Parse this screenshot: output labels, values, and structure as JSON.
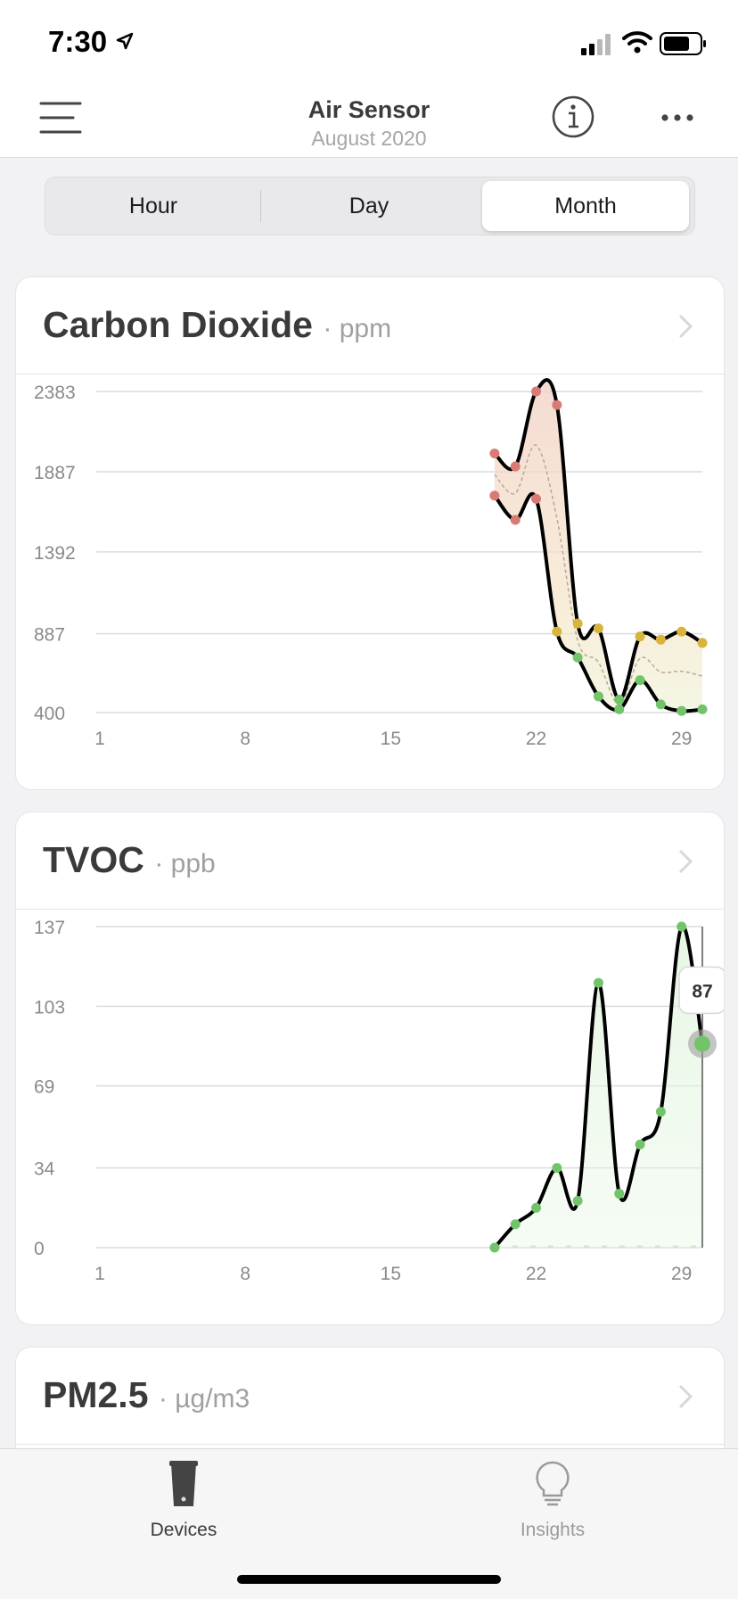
{
  "status": {
    "time": "7:30"
  },
  "header": {
    "title": "Air Sensor",
    "subtitle": "August 2020"
  },
  "segments": [
    "Hour",
    "Day",
    "Month"
  ],
  "selected_segment": "Month",
  "cards": [
    {
      "title": "Carbon Dioxide",
      "unit": "· ppm"
    },
    {
      "title": "TVOC",
      "unit": "· ppb"
    },
    {
      "title": "PM2.5",
      "unit": "· µg/m3"
    }
  ],
  "tabs": [
    {
      "label": "Devices",
      "icon": "air-sensor-device-icon",
      "active": true
    },
    {
      "label": "Insights",
      "icon": "lightbulb-icon",
      "active": false
    }
  ],
  "colors": {
    "red": "#d97b74",
    "yellow": "#d8b43c",
    "green": "#72c46a",
    "line": "#000000"
  },
  "chart_data": [
    {
      "type": "area",
      "title": "Carbon Dioxide",
      "unit": "ppm",
      "x_ticks": [
        "1",
        "8",
        "15",
        "22",
        "29"
      ],
      "y_ticks": [
        "400",
        "887",
        "1392",
        "1887",
        "2383"
      ],
      "xlim": [
        1,
        30
      ],
      "ylim": [
        400,
        2383
      ],
      "series": [
        {
          "x": [
            20,
            21,
            22,
            23,
            24,
            25,
            26,
            27,
            28,
            29,
            30
          ],
          "values": [
            2000,
            1920,
            2383,
            2300,
            950,
            920,
            480,
            870,
            850,
            900,
            830
          ]
        },
        {
          "x": [
            20,
            21,
            22,
            23,
            24,
            25,
            26,
            27,
            28,
            29,
            30
          ],
          "values": [
            1740,
            1590,
            1720,
            900,
            740,
            500,
            420,
            600,
            450,
            410,
            420
          ]
        }
      ]
    },
    {
      "type": "area",
      "title": "TVOC",
      "unit": "ppb",
      "x_ticks": [
        "1",
        "8",
        "15",
        "22",
        "29"
      ],
      "y_ticks": [
        "0",
        "34",
        "69",
        "103",
        "137"
      ],
      "xlim": [
        1,
        30
      ],
      "ylim": [
        0,
        137
      ],
      "tooltip": {
        "x": 30,
        "value": "87"
      },
      "series": [
        {
          "x": [
            20,
            21,
            22,
            23,
            24,
            25,
            26,
            27,
            28,
            29,
            30
          ],
          "values": [
            0,
            10,
            17,
            34,
            20,
            113,
            23,
            44,
            58,
            137,
            87
          ]
        }
      ]
    }
  ]
}
